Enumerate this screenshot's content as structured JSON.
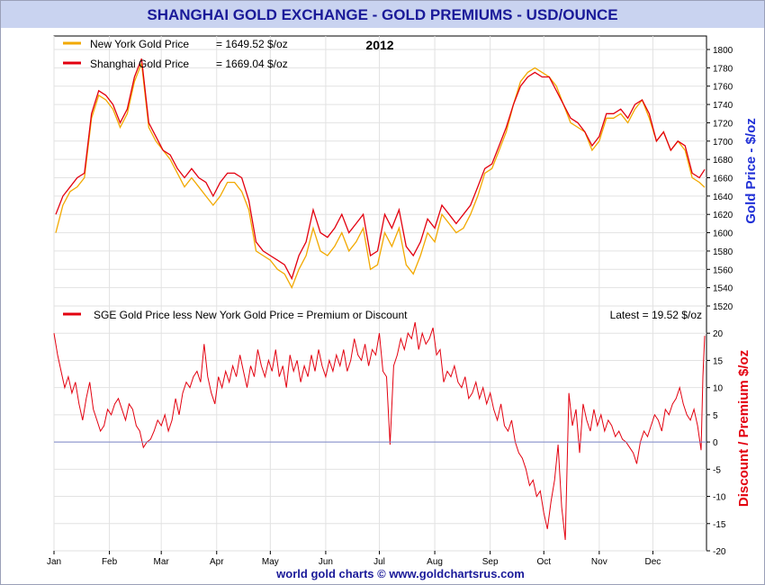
{
  "title": "SHANGHAI GOLD EXCHANGE - GOLD PREMIUMS - USD/OUNCE",
  "footer": "world gold charts © www.goldchartsrus.com",
  "colors": {
    "title_bar": "#c9d3f0",
    "title_text": "#1a1a99",
    "ny": "#f2a900",
    "sge": "#e3000f",
    "grid": "#e2e2e2",
    "zero_line": "#7b86c8",
    "right_axis_top": "#1f2fd6",
    "right_axis_bottom": "#e3000f"
  },
  "chart_data": [
    {
      "type": "line",
      "title": "2012",
      "ylabel": "Gold Price - $/oz",
      "ylim": [
        1520,
        1800
      ],
      "yticks": [
        1520,
        1540,
        1560,
        1580,
        1600,
        1620,
        1640,
        1660,
        1680,
        1700,
        1720,
        1740,
        1760,
        1780,
        1800
      ],
      "x_months": [
        "Jan",
        "Feb",
        "Mar",
        "Apr",
        "May",
        "Jun",
        "Jul",
        "Aug",
        "Sep",
        "Oct",
        "Nov",
        "Dec"
      ],
      "x_month_start_days": [
        1,
        32,
        61,
        92,
        122,
        153,
        183,
        214,
        245,
        275,
        306,
        336
      ],
      "xlim_days": [
        1,
        366
      ],
      "legend": [
        {
          "name": "New York Gold Price",
          "value": "= 1649.52 $/oz"
        },
        {
          "name": "Shanghai Gold Price",
          "value": "= 1669.04 $/oz"
        }
      ],
      "series": [
        {
          "name": "New York Gold Price",
          "x": [
            2,
            6,
            10,
            14,
            18,
            22,
            26,
            30,
            34,
            38,
            42,
            46,
            50,
            54,
            58,
            62,
            66,
            70,
            74,
            78,
            82,
            86,
            90,
            94,
            98,
            102,
            106,
            110,
            114,
            118,
            122,
            126,
            130,
            134,
            138,
            142,
            146,
            150,
            154,
            158,
            162,
            166,
            170,
            174,
            178,
            182,
            186,
            190,
            194,
            198,
            202,
            206,
            210,
            214,
            218,
            222,
            226,
            230,
            234,
            238,
            242,
            246,
            250,
            254,
            258,
            262,
            266,
            270,
            274,
            278,
            282,
            286,
            290,
            294,
            298,
            302,
            306,
            310,
            314,
            318,
            322,
            326,
            330,
            334,
            338,
            342,
            346,
            350,
            354,
            358,
            362,
            365
          ],
          "y": [
            1600,
            1630,
            1645,
            1650,
            1660,
            1725,
            1750,
            1745,
            1735,
            1715,
            1730,
            1765,
            1785,
            1715,
            1700,
            1690,
            1680,
            1665,
            1650,
            1660,
            1650,
            1640,
            1630,
            1640,
            1655,
            1655,
            1645,
            1625,
            1580,
            1575,
            1570,
            1560,
            1555,
            1540,
            1560,
            1575,
            1605,
            1580,
            1575,
            1585,
            1600,
            1580,
            1590,
            1605,
            1560,
            1565,
            1600,
            1585,
            1605,
            1565,
            1555,
            1575,
            1600,
            1590,
            1620,
            1610,
            1600,
            1605,
            1620,
            1640,
            1665,
            1670,
            1690,
            1710,
            1740,
            1765,
            1775,
            1780,
            1775,
            1770,
            1760,
            1740,
            1720,
            1715,
            1710,
            1690,
            1700,
            1725,
            1725,
            1730,
            1720,
            1735,
            1745,
            1725,
            1700,
            1710,
            1690,
            1700,
            1690,
            1660,
            1655,
            1649.52
          ]
        },
        {
          "name": "Shanghai Gold Price",
          "x": [
            2,
            6,
            10,
            14,
            18,
            22,
            26,
            30,
            34,
            38,
            42,
            46,
            50,
            54,
            58,
            62,
            66,
            70,
            74,
            78,
            82,
            86,
            90,
            94,
            98,
            102,
            106,
            110,
            114,
            118,
            122,
            126,
            130,
            134,
            138,
            142,
            146,
            150,
            154,
            158,
            162,
            166,
            170,
            174,
            178,
            182,
            186,
            190,
            194,
            198,
            202,
            206,
            210,
            214,
            218,
            222,
            226,
            230,
            234,
            238,
            242,
            246,
            250,
            254,
            258,
            262,
            266,
            270,
            274,
            278,
            282,
            286,
            290,
            294,
            298,
            302,
            306,
            310,
            314,
            318,
            322,
            326,
            330,
            334,
            338,
            342,
            346,
            350,
            354,
            358,
            362,
            365
          ],
          "y": [
            1620,
            1640,
            1650,
            1660,
            1665,
            1730,
            1755,
            1750,
            1740,
            1720,
            1735,
            1770,
            1790,
            1720,
            1705,
            1690,
            1685,
            1670,
            1660,
            1670,
            1660,
            1655,
            1640,
            1655,
            1665,
            1665,
            1660,
            1635,
            1590,
            1580,
            1575,
            1570,
            1565,
            1550,
            1575,
            1590,
            1625,
            1600,
            1595,
            1605,
            1620,
            1600,
            1610,
            1620,
            1575,
            1580,
            1620,
            1605,
            1625,
            1585,
            1575,
            1590,
            1615,
            1605,
            1630,
            1620,
            1610,
            1620,
            1630,
            1650,
            1670,
            1675,
            1695,
            1715,
            1740,
            1760,
            1770,
            1775,
            1770,
            1770,
            1755,
            1740,
            1725,
            1720,
            1710,
            1695,
            1705,
            1730,
            1730,
            1735,
            1725,
            1740,
            1745,
            1730,
            1700,
            1710,
            1690,
            1700,
            1695,
            1665,
            1660,
            1669.04
          ]
        }
      ]
    },
    {
      "type": "line",
      "ylabel": "Discount / Premium $/oz",
      "ylim": [
        -20,
        25
      ],
      "yticks": [
        -20,
        -15,
        -10,
        -5,
        0,
        5,
        10,
        15,
        20
      ],
      "xlim_days": [
        1,
        366
      ],
      "legend": [
        {
          "name": "SGE Gold Price less New York Gold Price = Premium or Discount"
        }
      ],
      "latest": "Latest = 19.52 $/oz",
      "series": [
        {
          "name": "SGE Gold Price less New York Gold Price = Premium or Discount",
          "x": [
            1,
            3,
            5,
            7,
            9,
            11,
            13,
            15,
            17,
            19,
            21,
            23,
            25,
            27,
            29,
            31,
            33,
            35,
            37,
            39,
            41,
            43,
            45,
            47,
            49,
            51,
            53,
            55,
            57,
            59,
            61,
            63,
            65,
            67,
            69,
            71,
            73,
            75,
            77,
            79,
            81,
            83,
            85,
            87,
            89,
            91,
            93,
            95,
            97,
            99,
            101,
            103,
            105,
            107,
            109,
            111,
            113,
            115,
            117,
            119,
            121,
            123,
            125,
            127,
            129,
            131,
            133,
            135,
            137,
            139,
            141,
            143,
            145,
            147,
            149,
            151,
            153,
            155,
            157,
            159,
            161,
            163,
            165,
            167,
            169,
            171,
            173,
            175,
            177,
            179,
            181,
            183,
            185,
            187,
            189,
            191,
            193,
            195,
            197,
            199,
            201,
            203,
            205,
            207,
            209,
            211,
            213,
            215,
            217,
            219,
            221,
            223,
            225,
            227,
            229,
            231,
            233,
            235,
            237,
            239,
            241,
            243,
            245,
            247,
            249,
            251,
            253,
            255,
            257,
            259,
            261,
            263,
            265,
            267,
            269,
            271,
            273,
            275,
            277,
            279,
            281,
            283,
            285,
            287,
            289,
            291,
            293,
            295,
            297,
            299,
            301,
            303,
            305,
            307,
            309,
            311,
            313,
            315,
            317,
            319,
            321,
            323,
            325,
            327,
            329,
            331,
            333,
            335,
            337,
            339,
            341,
            343,
            345,
            347,
            349,
            351,
            353,
            355,
            357,
            359,
            361,
            363,
            364,
            365
          ],
          "y": [
            20,
            16,
            13,
            10,
            12,
            9,
            11,
            7,
            4,
            8,
            11,
            6,
            4,
            2,
            3,
            6,
            5,
            7,
            8,
            6,
            4,
            7,
            6,
            3,
            2,
            -1,
            0,
            0.5,
            2,
            4,
            3,
            5,
            2,
            4,
            8,
            5,
            9,
            11,
            10,
            12,
            13,
            11,
            18,
            12,
            9,
            7,
            12,
            10,
            13,
            11,
            14,
            12,
            16,
            13,
            10,
            14,
            12,
            17,
            14,
            12,
            15,
            13,
            17,
            12,
            14,
            10,
            16,
            13,
            15,
            11,
            14,
            12,
            16,
            13,
            17,
            14,
            12,
            15,
            13,
            16,
            14,
            17,
            13,
            15,
            19,
            16,
            15,
            18,
            14,
            17,
            16,
            20,
            13,
            12,
            -0.5,
            14,
            16,
            19,
            17,
            20,
            19,
            22,
            17,
            20,
            18,
            19,
            21,
            16,
            17,
            11,
            13,
            12,
            14,
            11,
            10,
            12,
            8,
            9,
            11,
            8,
            10,
            7,
            9,
            6,
            4,
            7,
            3,
            2,
            4,
            0,
            -2,
            -3,
            -5,
            -8,
            -7,
            -10,
            -9,
            -13,
            -16,
            -11,
            -7,
            -0.5,
            -12,
            -18,
            9,
            3,
            6,
            -2,
            7,
            4,
            2,
            6,
            3,
            5,
            2,
            4,
            3,
            1,
            2,
            0.5,
            0,
            -1,
            -2,
            -4,
            0,
            2,
            1,
            3,
            5,
            4,
            2,
            6,
            5,
            7,
            8,
            10,
            7,
            5,
            4,
            6,
            3,
            -1.5,
            12,
            19.52
          ]
        }
      ]
    }
  ]
}
